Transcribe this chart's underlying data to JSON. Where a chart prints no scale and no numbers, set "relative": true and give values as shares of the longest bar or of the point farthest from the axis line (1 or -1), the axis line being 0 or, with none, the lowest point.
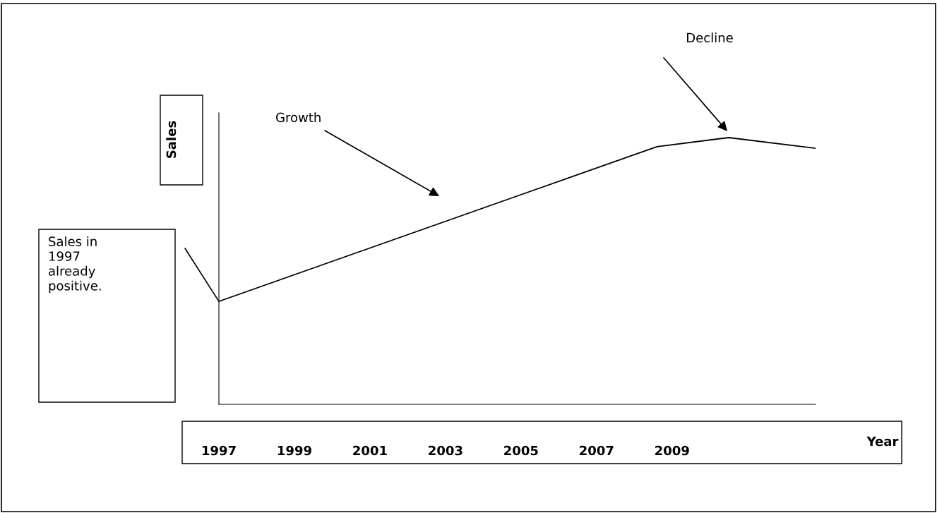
{
  "chart_data": {
    "type": "line",
    "relative": true,
    "xlabel": "Year",
    "ylabel": "Sales",
    "x": [
      1997,
      2008.6,
      2010.5,
      2012.8
    ],
    "values": [
      0.386,
      0.966,
      1,
      0.96
    ],
    "color": "#000000",
    "xlim": [
      1997,
      2012.8
    ],
    "xticks": [
      1997,
      1999,
      2001,
      2003,
      2005,
      2007,
      2009
    ],
    "grid": false,
    "marker": "none",
    "line_style": "solid",
    "annotations": [
      "Growth",
      "Decline",
      "Sales in\n1997\nalready\npositive."
    ]
  }
}
